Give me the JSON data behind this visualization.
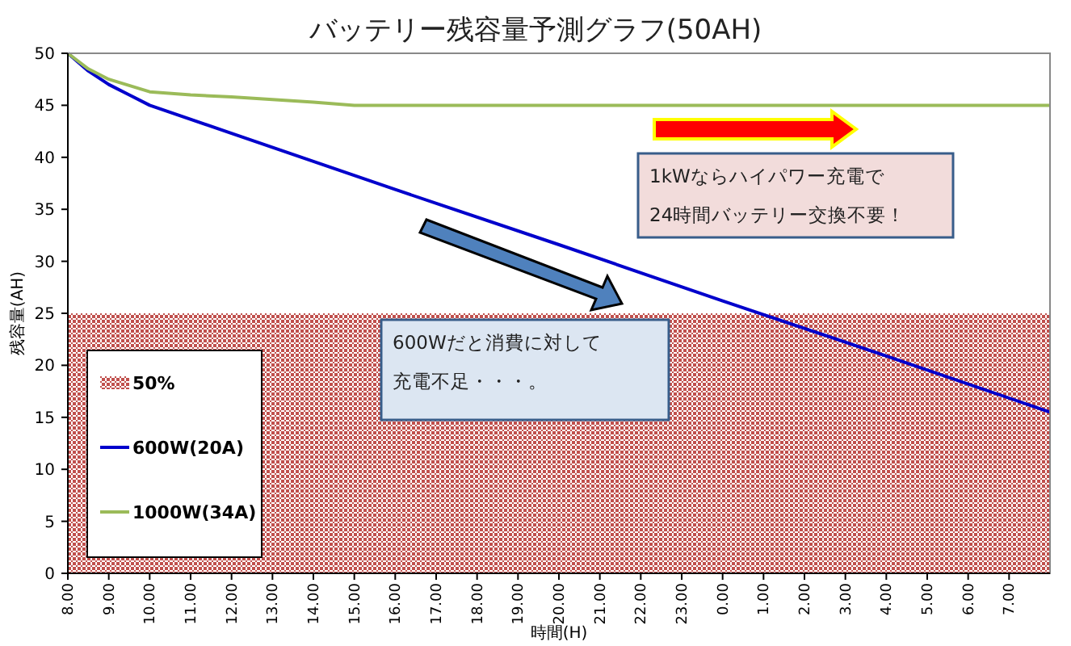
{
  "chart_data": {
    "type": "line",
    "title": "バッテリー残容量予測グラフ(50AH)",
    "xlabel": "時間(H)",
    "ylabel": "残容量(AH)",
    "x": [
      "2000-01-01T08:00",
      "2000-01-01T08:30",
      "2000-01-01T09:00",
      "2000-01-01T09:30",
      "2000-01-01T10:00",
      "2000-01-01T12:00",
      "2000-01-01T16:00",
      "2000-01-01T20:00",
      "2000-01-02T00:00",
      "2000-01-02T04:00",
      "2000-01-02T08:00"
    ],
    "xlim": [
      "2000-01-01T08:00",
      "2000-01-02T08:00"
    ],
    "xticks": [
      {
        "value": "2000-01-01T08:00",
        "label": "8.00"
      },
      {
        "value": "2000-01-01T09:00",
        "label": "9.00"
      },
      {
        "value": "2000-01-01T10:00",
        "label": "10.00"
      },
      {
        "value": "2000-01-01T11:00",
        "label": "11.00"
      },
      {
        "value": "2000-01-01T12:00",
        "label": "12.00"
      },
      {
        "value": "2000-01-01T13:00",
        "label": "13.00"
      },
      {
        "value": "2000-01-01T14:00",
        "label": "14.00"
      },
      {
        "value": "2000-01-01T15:00",
        "label": "15.00"
      },
      {
        "value": "2000-01-01T16:00",
        "label": "16.00"
      },
      {
        "value": "2000-01-01T17:00",
        "label": "17.00"
      },
      {
        "value": "2000-01-01T18:00",
        "label": "18.00"
      },
      {
        "value": "2000-01-01T19:00",
        "label": "19.00"
      },
      {
        "value": "2000-01-01T20:00",
        "label": "20.00"
      },
      {
        "value": "2000-01-01T21:00",
        "label": "21.00"
      },
      {
        "value": "2000-01-01T22:00",
        "label": "22.00"
      },
      {
        "value": "2000-01-01T23:00",
        "label": "23.00"
      },
      {
        "value": "2000-01-02T00:00",
        "label": "0.00"
      },
      {
        "value": "2000-01-02T01:00",
        "label": "1.00"
      },
      {
        "value": "2000-01-02T02:00",
        "label": "2.00"
      },
      {
        "value": "2000-01-02T03:00",
        "label": "3.00"
      },
      {
        "value": "2000-01-02T04:00",
        "label": "4.00"
      },
      {
        "value": "2000-01-02T05:00",
        "label": "5.00"
      },
      {
        "value": "2000-01-02T06:00",
        "label": "6.00"
      },
      {
        "value": "2000-01-02T07:00",
        "label": "7.00"
      }
    ],
    "ylim": [
      0,
      50
    ],
    "yticks": [
      0,
      5,
      10,
      15,
      20,
      25,
      30,
      35,
      40,
      45,
      50
    ],
    "series": [
      {
        "name": "600W(20A)",
        "color": "#0000cc",
        "values": [
          50,
          48.3,
          47,
          46,
          45,
          42.3,
          36.9,
          31.6,
          26.2,
          20.9,
          15.5
        ]
      },
      {
        "name": "1000W(34A)",
        "color": "#9bbb59",
        "x": [
          "2000-01-01T08:00",
          "2000-01-01T08:30",
          "2000-01-01T09:00",
          "2000-01-01T10:00",
          "2000-01-01T11:00",
          "2000-01-01T12:00",
          "2000-01-01T14:00",
          "2000-01-01T15:00",
          "2000-01-01T20:00",
          "2000-01-02T02:00",
          "2000-01-02T08:00"
        ],
        "values": [
          50,
          48.5,
          47.5,
          46.3,
          46,
          45.8,
          45.3,
          45,
          45,
          45,
          45
        ]
      }
    ],
    "bands": [
      {
        "axis": "y",
        "from": 0,
        "to": 25,
        "label": "50%",
        "color": "#c0504d"
      }
    ],
    "annotations": [
      "1kWならハイパワー充電で",
      "24時間バッテリー交換不要！",
      "600Wだと消費に対して",
      "充電不足・・・。"
    ],
    "legend": "bottom left",
    "grid": false,
    "marker": "none",
    "line_style": "solid"
  }
}
